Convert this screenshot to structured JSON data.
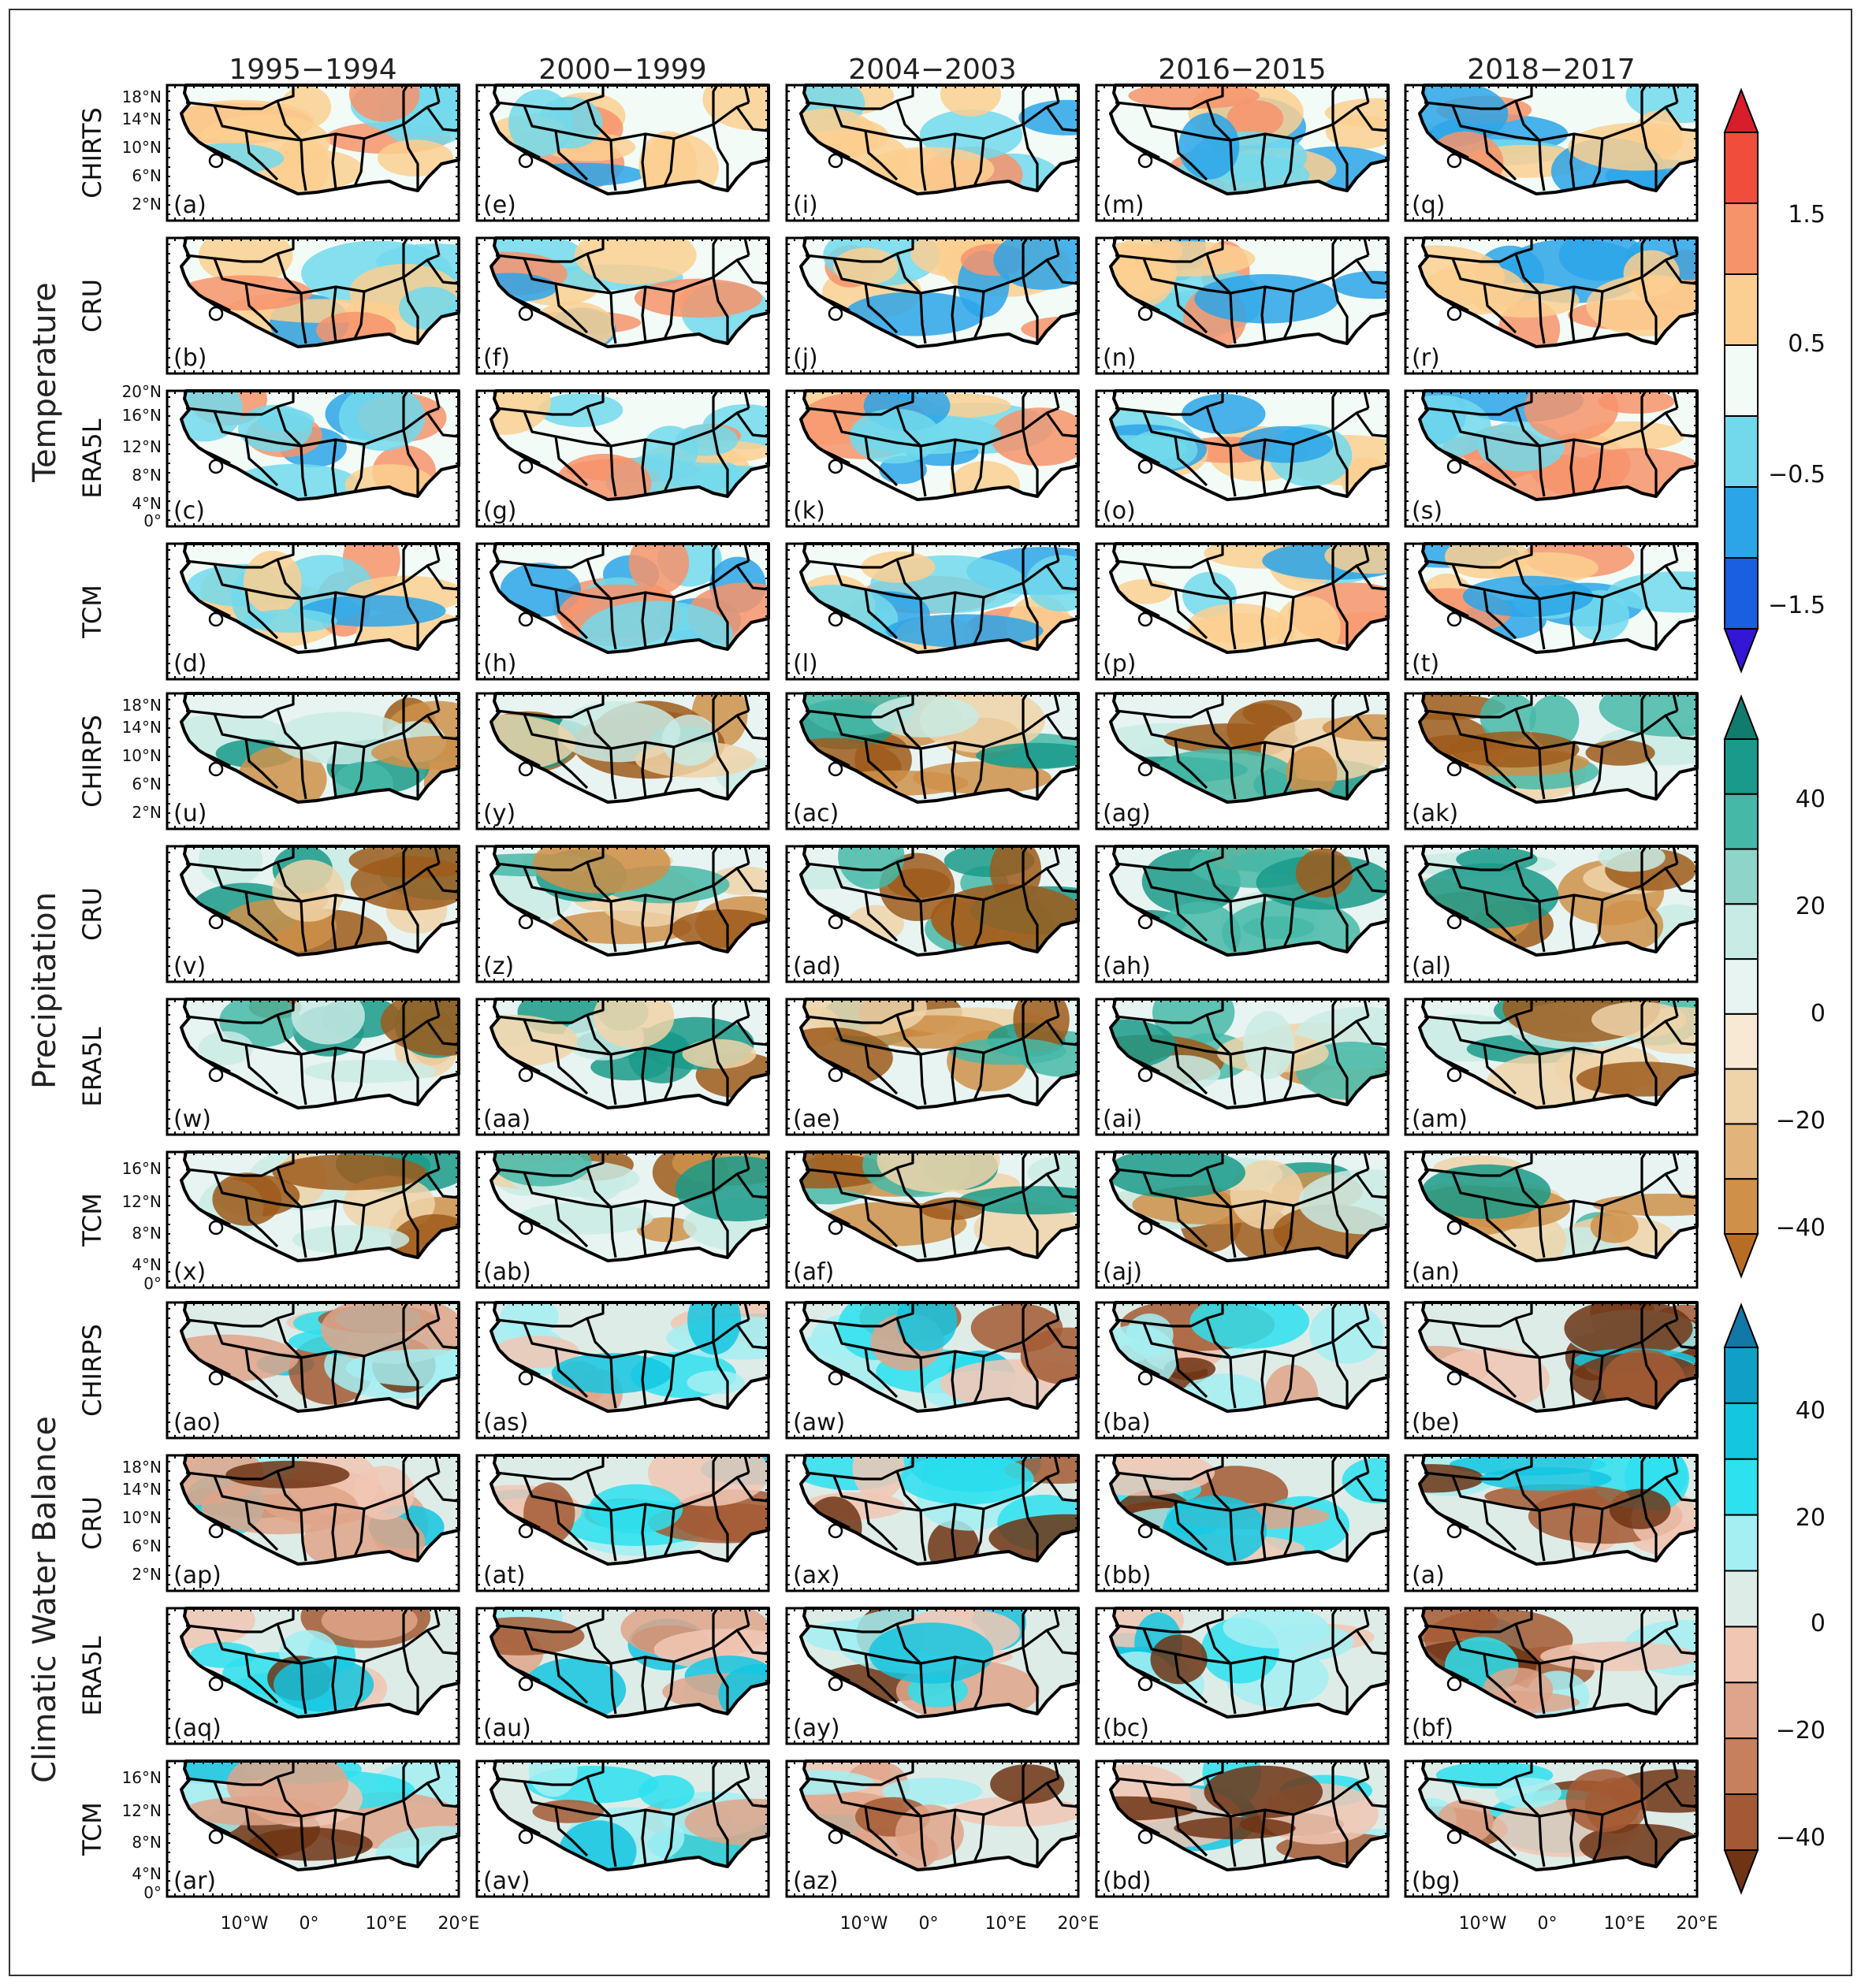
{
  "figure": {
    "columns": [
      "1995−1994",
      "2000−1999",
      "2004−2003",
      "2016−2015",
      "2018−2017"
    ],
    "variables": [
      {
        "label": "Temperature",
        "rows": [
          {
            "name": "CHIRTS",
            "panels": [
              "(a)",
              "(e)",
              "(i)",
              "(m)",
              "(q)"
            ]
          },
          {
            "name": "CRU",
            "panels": [
              "(b)",
              "(f)",
              "(j)",
              "(n)",
              "(r)"
            ]
          },
          {
            "name": "ERA5L",
            "panels": [
              "(c)",
              "(g)",
              "(k)",
              "(o)",
              "(s)"
            ]
          },
          {
            "name": "TCM",
            "panels": [
              "(d)",
              "(h)",
              "(l)",
              "(p)",
              "(t)"
            ]
          }
        ]
      },
      {
        "label": "Precipitation",
        "rows": [
          {
            "name": "CHIRPS",
            "panels": [
              "(u)",
              "(y)",
              "(ac)",
              "(ag)",
              "(ak)"
            ]
          },
          {
            "name": "CRU",
            "panels": [
              "(v)",
              "(z)",
              "(ad)",
              "(ah)",
              "(al)"
            ]
          },
          {
            "name": "ERA5L",
            "panels": [
              "(w)",
              "(aa)",
              "(ae)",
              "(ai)",
              "(am)"
            ]
          },
          {
            "name": "TCM",
            "panels": [
              "(x)",
              "(ab)",
              "(af)",
              "(aj)",
              "(an)"
            ]
          }
        ]
      },
      {
        "label": "Climatic  Water  Balance",
        "rows": [
          {
            "name": "CHIRPS",
            "panels": [
              "(ao)",
              "(as)",
              "(aw)",
              "(ba)",
              "(be)"
            ]
          },
          {
            "name": "CRU",
            "panels": [
              "(ap)",
              "(at)",
              "(ax)",
              "(bb)",
              "(a)"
            ]
          },
          {
            "name": "ERA5L",
            "panels": [
              "(aq)",
              "(au)",
              "(ay)",
              "(bc)",
              "(bf)"
            ]
          },
          {
            "name": "TCM",
            "panels": [
              "(ar)",
              "(av)",
              "(az)",
              "(bd)",
              "(bg)"
            ]
          }
        ]
      }
    ],
    "lat_labels": {
      "a": [
        "18°N",
        "14°N",
        "10°N",
        "6°N",
        "2°N"
      ],
      "b": [
        "20°N",
        "16°N",
        "12°N",
        "8°N",
        "4°N",
        "0°"
      ],
      "c": [
        "16°N",
        "12°N",
        "8°N",
        "4°N",
        "0°"
      ]
    },
    "lon_labels": [
      "10°W",
      "0°",
      "10°E",
      "20°E"
    ]
  },
  "colorbars": [
    {
      "variable": "Temperature",
      "tick_labels": [
        "1.5",
        "0.5",
        "−0.5",
        "−1.5"
      ],
      "colors": [
        "#d81e2a",
        "#f04d3c",
        "#f7936b",
        "#fbcf91",
        "#f2fbf6",
        "#72d9ec",
        "#2ba5e8",
        "#1a5fe0",
        "#3316d6"
      ]
    },
    {
      "variable": "Precipitation",
      "tick_labels": [
        "40",
        "20",
        "0",
        "−20",
        "−40"
      ],
      "colors": [
        "#117c6d",
        "#1a9a8a",
        "#46b8a8",
        "#8fd4c8",
        "#c9ebe5",
        "#e8f4f2",
        "#f7e9d4",
        "#efd3a9",
        "#e2b47b",
        "#cf914a",
        "#b86d24"
      ]
    },
    {
      "variable": "Climatic Water Balance",
      "tick_labels": [
        "40",
        "20",
        "0",
        "−20",
        "−40"
      ],
      "colors": [
        "#1178a7",
        "#10a0c7",
        "#14c6e0",
        "#2ee1ee",
        "#a5eef2",
        "#deece8",
        "#f1c7b4",
        "#dfa58a",
        "#c7805e",
        "#a35a34",
        "#6e3414"
      ]
    }
  ]
}
